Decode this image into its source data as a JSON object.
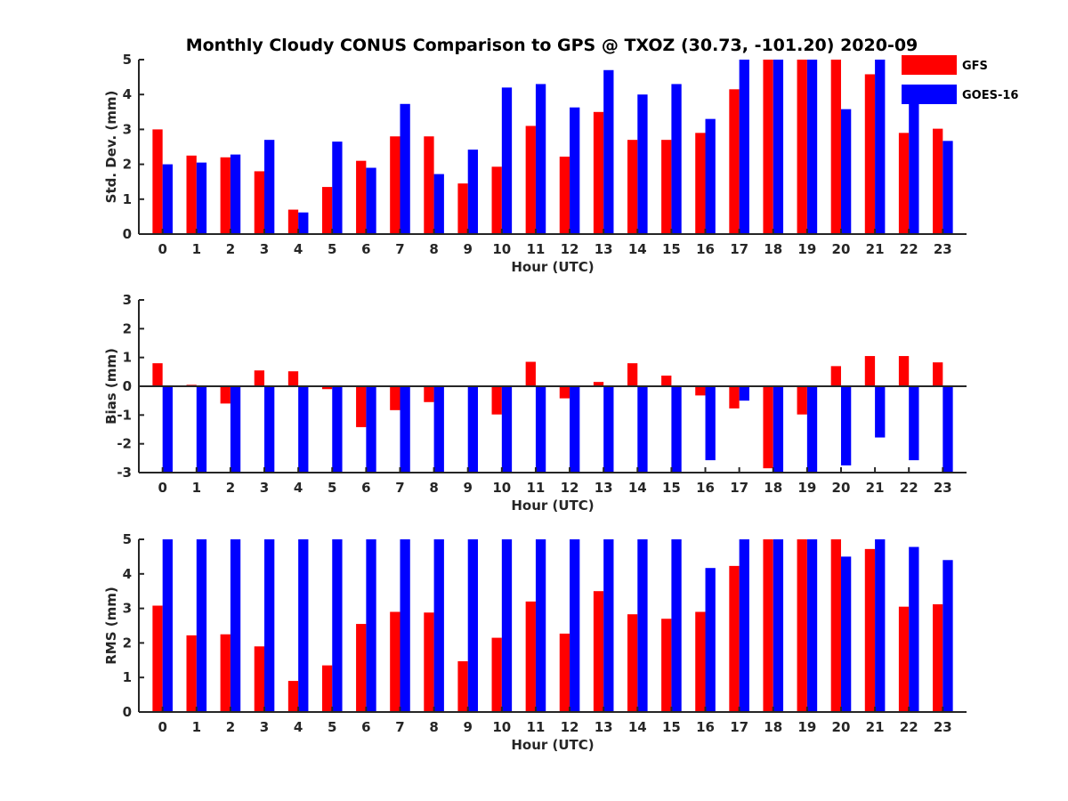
{
  "colors": {
    "gfs": "#ff0000",
    "goes": "#0000ff",
    "axis": "#262626"
  },
  "chart_data": {
    "type": "bar",
    "title": "Monthly Cloudy CONUS Comparison to GPS @ TXOZ (30.73, -101.20) 2020-09",
    "legend": {
      "location": "top-right",
      "entries": [
        "GFS",
        "GOES-16"
      ]
    },
    "categories": [
      "0",
      "1",
      "2",
      "3",
      "4",
      "5",
      "6",
      "7",
      "8",
      "9",
      "10",
      "11",
      "12",
      "13",
      "14",
      "15",
      "16",
      "17",
      "18",
      "19",
      "20",
      "21",
      "22",
      "23"
    ],
    "panels": [
      {
        "xlabel": "Hour (UTC)",
        "ylabel": "Std. Dev. (mm)",
        "ylim": [
          0,
          5
        ],
        "yticks": [
          "0",
          "1",
          "2",
          "3",
          "4",
          "5"
        ],
        "series": [
          {
            "name": "GFS",
            "values": [
              3.0,
              2.25,
              2.2,
              1.8,
              0.7,
              1.35,
              2.1,
              2.8,
              2.8,
              1.45,
              1.93,
              3.1,
              2.22,
              3.5,
              2.7,
              2.7,
              2.9,
              4.15,
              5.0,
              5.0,
              5.0,
              4.58,
              2.9,
              3.02
            ]
          },
          {
            "name": "GOES-16",
            "values": [
              2.0,
              2.05,
              2.28,
              2.7,
              0.62,
              2.65,
              1.9,
              3.73,
              1.72,
              2.42,
              4.2,
              4.3,
              3.63,
              4.7,
              4.0,
              4.3,
              3.3,
              5.0,
              5.0,
              5.0,
              3.58,
              5.0,
              4.02,
              2.67
            ]
          }
        ]
      },
      {
        "xlabel": "Hour (UTC)",
        "ylabel": "Bias (mm)",
        "ylim": [
          -3,
          3
        ],
        "yticks": [
          "-3",
          "-2",
          "-1",
          "0",
          "1",
          "2",
          "3"
        ],
        "series": [
          {
            "name": "GFS",
            "values": [
              0.8,
              0.05,
              -0.6,
              0.55,
              0.52,
              -0.1,
              -1.42,
              -0.83,
              -0.55,
              0.0,
              -0.98,
              0.85,
              -0.42,
              0.15,
              0.8,
              0.37,
              -0.32,
              -0.77,
              -2.85,
              -0.98,
              0.7,
              1.05,
              1.05,
              0.83
            ]
          },
          {
            "name": "GOES-16",
            "values": [
              -3.0,
              -3.0,
              -3.0,
              -3.0,
              -3.0,
              -3.0,
              -3.0,
              -3.0,
              -3.0,
              -3.0,
              -3.0,
              -3.0,
              -3.0,
              -3.0,
              -3.0,
              -3.0,
              -2.57,
              -0.5,
              -3.0,
              -3.0,
              -2.75,
              -1.78,
              -2.57,
              -3.0
            ]
          }
        ]
      },
      {
        "xlabel": "Hour (UTC)",
        "ylabel": "RMS (mm)",
        "ylim": [
          0,
          5
        ],
        "yticks": [
          "0",
          "1",
          "2",
          "3",
          "4",
          "5"
        ],
        "series": [
          {
            "name": "GFS",
            "values": [
              3.08,
              2.22,
              2.25,
              1.9,
              0.9,
              1.35,
              2.55,
              2.9,
              2.88,
              1.47,
              2.15,
              3.2,
              2.27,
              3.5,
              2.83,
              2.7,
              2.9,
              4.23,
              5.0,
              5.0,
              5.0,
              4.72,
              3.05,
              3.12
            ]
          },
          {
            "name": "GOES-16",
            "values": [
              5.0,
              5.0,
              5.0,
              5.0,
              5.0,
              5.0,
              5.0,
              5.0,
              5.0,
              5.0,
              5.0,
              5.0,
              5.0,
              5.0,
              5.0,
              5.0,
              4.17,
              5.0,
              5.0,
              5.0,
              4.5,
              5.0,
              4.78,
              4.4
            ]
          }
        ]
      }
    ]
  }
}
